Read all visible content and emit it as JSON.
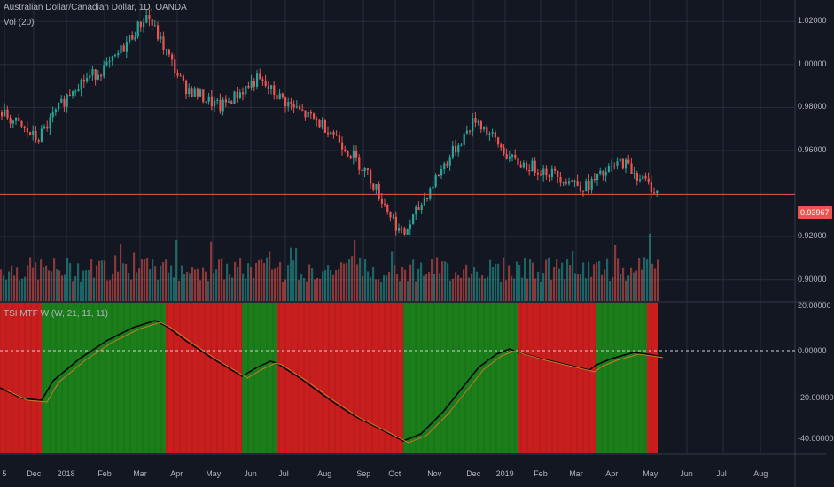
{
  "header": {
    "symbol": "Australian Dollar/Canadian Dollar",
    "interval": "1D",
    "exchange": "OANDA",
    "title": "Australian Dollar/Canadian Dollar, 1D, OANDA"
  },
  "volume_label": "Vol (20)",
  "indicator_label": "TSI MTF W (W, 21, 11, 11)",
  "current_price": "0.93967",
  "colors": {
    "background": "#131722",
    "up": "#26a69a",
    "down": "#ef5350",
    "bull_zone": "#1b7e1b",
    "bear_zone": "#c81e1e",
    "grid": "#2a2e39",
    "price_line": "#ef5350"
  },
  "price_axis": {
    "ticks": [
      "1.02000",
      "1.00000",
      "0.98000",
      "0.96000",
      "0.92000",
      "0.90000"
    ]
  },
  "indicator_axis": {
    "ticks": [
      "20.00000",
      "0.00000",
      "-20.00000",
      "-40.00000"
    ]
  },
  "time_axis": {
    "labels": [
      "5",
      "Dec",
      "2018",
      "Feb",
      "Mar",
      "Apr",
      "May",
      "Jun",
      "Jul",
      "Aug",
      "Sep",
      "Oct",
      "Nov",
      "Dec",
      "2019",
      "Feb",
      "Mar",
      "Apr",
      "May",
      "Jun",
      "Jul",
      "Aug"
    ]
  },
  "chart_data": {
    "type": "candlestick",
    "title": "Australian Dollar/Canadian Dollar, 1D, OANDA",
    "x": [
      "Nov 2017",
      "Dec 2017",
      "Jan 2018",
      "Feb 2018",
      "Mar 2018",
      "Apr 2018",
      "May 2018",
      "Jun 2018",
      "Jul 2018",
      "Aug 2018",
      "Sep 2018",
      "Oct 2018",
      "Nov 2018",
      "Dec 2018",
      "Jan 2019",
      "Feb 2019",
      "Mar 2019",
      "Apr 2019",
      "May 2019"
    ],
    "series": [
      {
        "values": [
          0.978,
          0.965,
          0.99,
          1.0,
          1.023,
          0.99,
          0.98,
          0.993,
          0.98,
          0.97,
          0.95,
          0.92,
          0.95,
          0.975,
          0.955,
          0.95,
          0.943,
          0.955,
          0.94
        ]
      }
    ],
    "current_price": 0.93967,
    "ylim": [
      0.89,
      1.03
    ],
    "indicator": {
      "name": "TSI MTF W (W, 21, 11, 11)",
      "ylim": [
        -45,
        22
      ],
      "zones": [
        {
          "start": "Nov 2017",
          "end": "Dec 2017",
          "state": "bear"
        },
        {
          "start": "Dec 2017",
          "end": "Mar 2018",
          "state": "bull"
        },
        {
          "start": "Mar 2018",
          "end": "May 2018",
          "state": "bear"
        },
        {
          "start": "Jun 2018",
          "end": "Jul 2018",
          "state": "bull"
        },
        {
          "start": "Jul 2018",
          "end": "Oct 2018",
          "state": "bear"
        },
        {
          "start": "Oct 2018",
          "end": "Jan 2019",
          "state": "bull"
        },
        {
          "start": "Jan 2019",
          "end": "Mar 2019",
          "state": "bear"
        },
        {
          "start": "Mar 2019",
          "end": "Apr 2019",
          "state": "bull"
        },
        {
          "start": "Apr 2019",
          "end": "May 2019",
          "state": "bear"
        }
      ]
    }
  }
}
